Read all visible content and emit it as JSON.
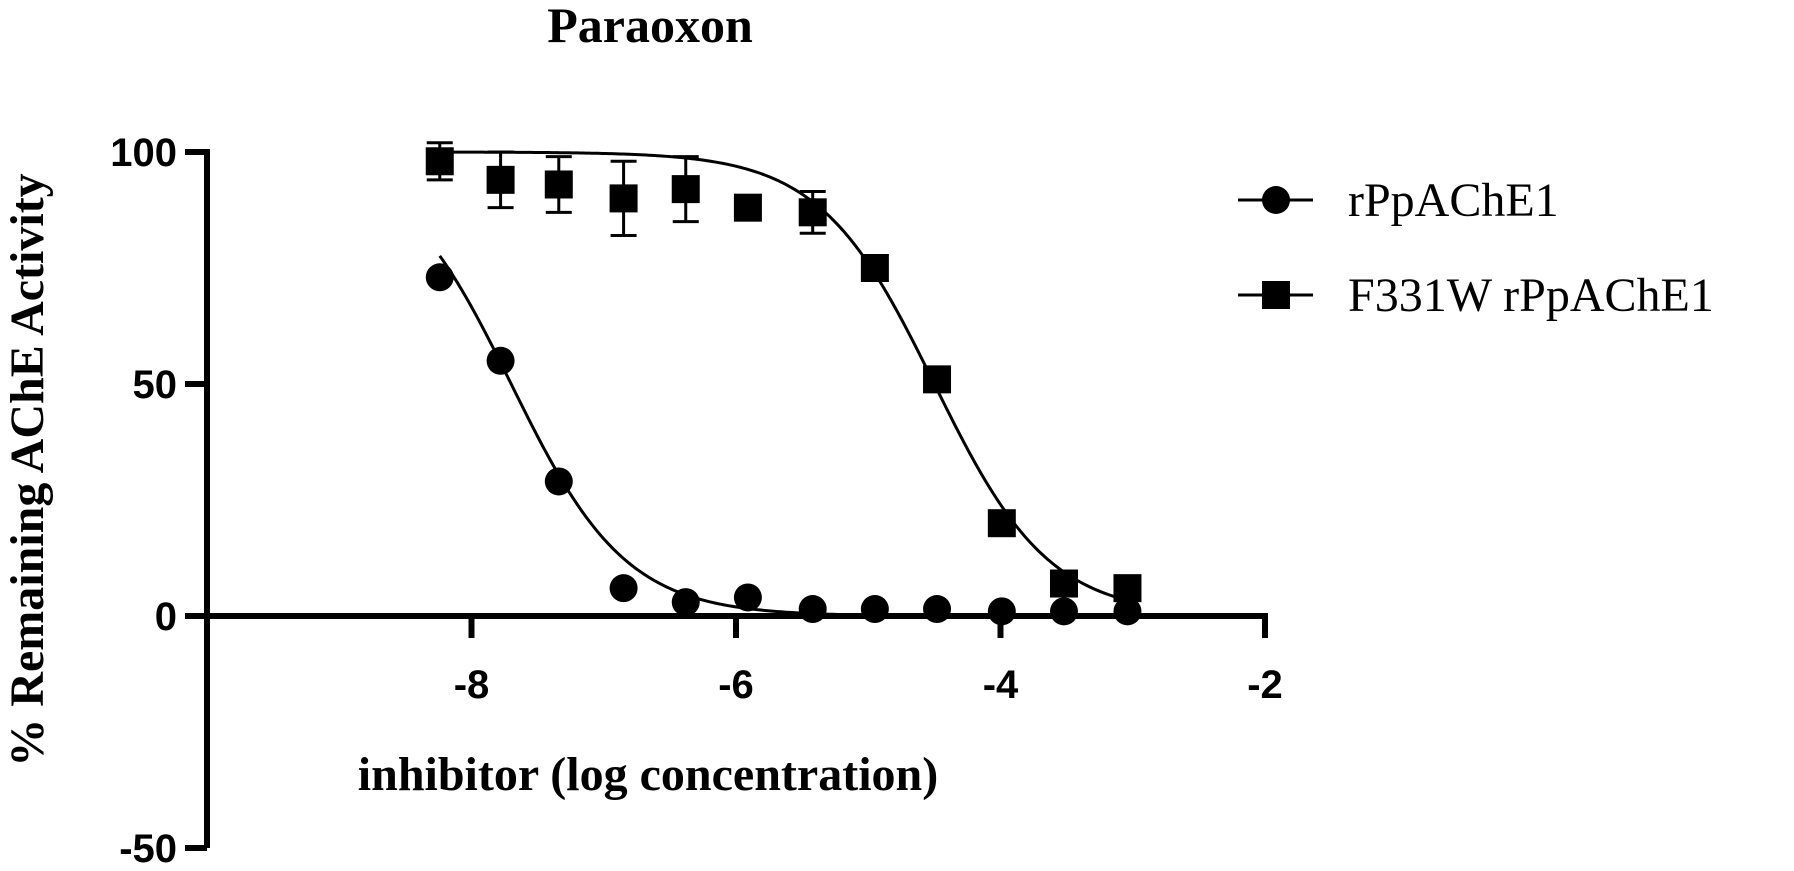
{
  "chart_data": {
    "type": "line",
    "title": "Paraoxon",
    "xlabel": "inhibitor (log concentration)",
    "ylabel": "%  Remaining AChE Activity",
    "xlim": [
      -10,
      -2
    ],
    "ylim": [
      -50,
      100
    ],
    "xticks": [
      {
        "value": -8,
        "label": "-8"
      },
      {
        "value": -6,
        "label": "-6"
      },
      {
        "value": -4,
        "label": "-4"
      },
      {
        "value": -2,
        "label": "-2"
      }
    ],
    "yticks": [
      {
        "value": -50,
        "label": "-50"
      },
      {
        "value": 0,
        "label": "0"
      },
      {
        "value": 50,
        "label": "50"
      },
      {
        "value": 100,
        "label": "100"
      }
    ],
    "grid": false,
    "legend_position": "right",
    "series": [
      {
        "name": "rPpAChE1",
        "marker": "circle",
        "color": "#000000",
        "x": [
          -8.24,
          -7.78,
          -7.34,
          -6.85,
          -6.38,
          -5.91,
          -5.42,
          -4.95,
          -4.48,
          -3.99,
          -3.52,
          -3.04
        ],
        "y": [
          73,
          55,
          29,
          6,
          3,
          4,
          1.5,
          1.5,
          1.5,
          1,
          1,
          1
        ],
        "err": [
          0,
          0,
          0,
          0,
          0,
          0,
          0,
          0,
          0,
          0,
          0,
          0
        ],
        "fit": {
          "top": 100,
          "bottom": 0,
          "logIC50": -7.7,
          "hill": 1
        }
      },
      {
        "name": "F331W rPpAChE1",
        "marker": "square",
        "color": "#000000",
        "x": [
          -8.24,
          -7.78,
          -7.34,
          -6.85,
          -6.38,
          -5.91,
          -5.42,
          -4.95,
          -4.48,
          -3.99,
          -3.52,
          -3.04
        ],
        "y": [
          98,
          94,
          93,
          90,
          92,
          88,
          87,
          75,
          51,
          20,
          7,
          6
        ],
        "err": [
          4,
          6,
          6,
          8,
          7,
          0,
          4.5,
          0,
          0,
          0,
          0,
          0
        ],
        "fit": {
          "top": 100,
          "bottom": 0,
          "logIC50": -4.5,
          "hill": 1
        }
      }
    ]
  }
}
